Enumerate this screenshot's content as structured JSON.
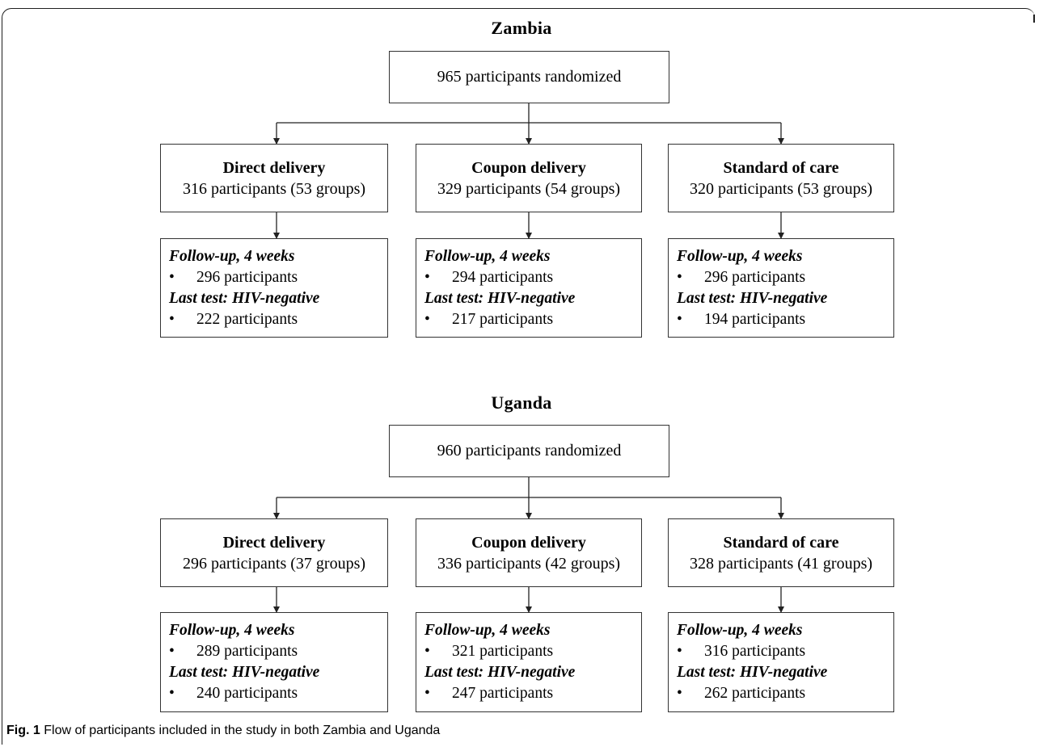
{
  "sections": [
    {
      "title": "Zambia",
      "randomized": "965 participants randomized",
      "arms": [
        {
          "name": "Direct delivery",
          "participants": "316 participants (53 groups)",
          "followup_label": "Follow-up, 4 weeks",
          "followup_value": "296 participants",
          "hiv_label": "Last test: HIV-negative",
          "hiv_value": "222 participants"
        },
        {
          "name": "Coupon delivery",
          "participants": "329 participants (54 groups)",
          "followup_label": "Follow-up, 4 weeks",
          "followup_value": "294 participants",
          "hiv_label": "Last test: HIV-negative",
          "hiv_value": "217 participants"
        },
        {
          "name": "Standard of care",
          "participants": "320 participants (53 groups)",
          "followup_label": "Follow-up, 4 weeks",
          "followup_value": "296 participants",
          "hiv_label": "Last test: HIV-negative",
          "hiv_value": "194 participants"
        }
      ]
    },
    {
      "title": "Uganda",
      "randomized": "960 participants randomized",
      "arms": [
        {
          "name": "Direct delivery",
          "participants": "296 participants (37 groups)",
          "followup_label": "Follow-up, 4 weeks",
          "followup_value": "289 participants",
          "hiv_label": "Last test: HIV-negative",
          "hiv_value": "240 participants"
        },
        {
          "name": "Coupon delivery",
          "participants": "336 participants (42 groups)",
          "followup_label": "Follow-up, 4 weeks",
          "followup_value": "321 participants",
          "hiv_label": "Last test: HIV-negative",
          "hiv_value": "247 participants"
        },
        {
          "name": "Standard of care",
          "participants": "328 participants (41 groups)",
          "followup_label": "Follow-up, 4 weeks",
          "followup_value": "316 participants",
          "hiv_label": "Last test: HIV-negative",
          "hiv_value": "262 participants"
        }
      ]
    }
  ],
  "bullet": "•",
  "caption": {
    "fig": "Fig. 1",
    "text": "Flow of participants included in the study in both Zambia and Uganda"
  }
}
